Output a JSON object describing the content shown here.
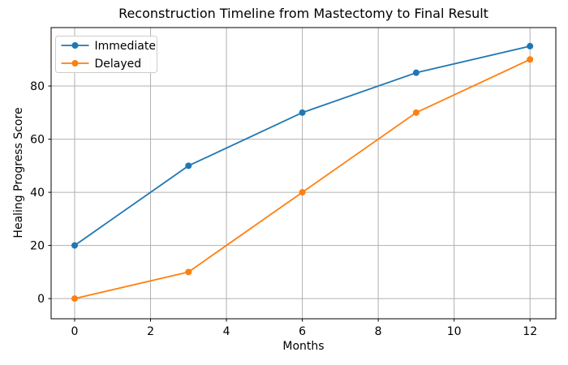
{
  "chart_data": {
    "type": "line",
    "title": "Reconstruction Timeline from Mastectomy to Final Result",
    "xlabel": "Months",
    "ylabel": "Healing Progress Score",
    "x": [
      0,
      3,
      6,
      9,
      12
    ],
    "series": [
      {
        "name": "Immediate",
        "color": "#1f77b4",
        "values": [
          20,
          50,
          70,
          85,
          95
        ]
      },
      {
        "name": "Delayed",
        "color": "#ff7f0e",
        "values": [
          0,
          10,
          40,
          70,
          90
        ]
      }
    ],
    "xticks": [
      0,
      2,
      4,
      6,
      8,
      10,
      12
    ],
    "yticks": [
      0,
      20,
      40,
      60,
      80
    ],
    "xlim": [
      -0.62,
      12.68
    ],
    "ylim": [
      -7.6,
      102.0
    ],
    "grid": true,
    "legend_position": "upper left",
    "marker": "o",
    "colors": {
      "grid": "#b0b0b0",
      "axis": "#000000",
      "text": "#000000",
      "background": "#ffffff",
      "legend_border": "#cccccc"
    }
  }
}
